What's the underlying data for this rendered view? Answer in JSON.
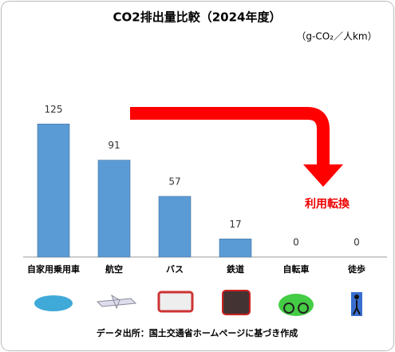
{
  "chart_data": {
    "type": "bar",
    "title": "CO2排出量比較（2024年度）",
    "unit": "（g-CO₂／人km）",
    "categories": [
      "自家用乗用車",
      "航空",
      "バス",
      "鉄道",
      "自転車",
      "徒歩"
    ],
    "values": [
      125,
      91,
      57,
      17,
      0,
      0
    ],
    "color": "#5b9bd5",
    "ylim": [
      0,
      150
    ],
    "annotation": "利用転換",
    "source": "データ出所：国土交通省ホームページに基づき作成"
  }
}
